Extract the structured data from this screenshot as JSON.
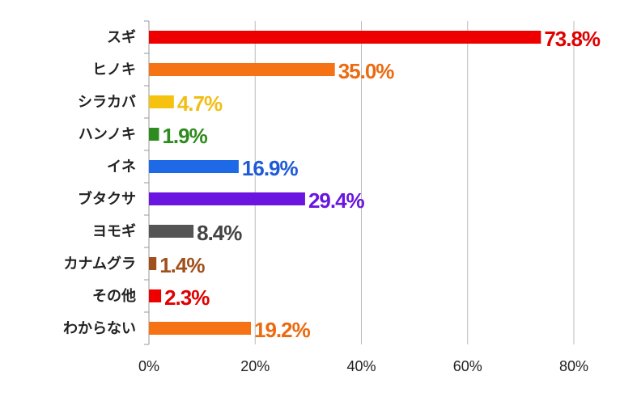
{
  "chart_data": {
    "type": "bar",
    "orientation": "horizontal",
    "categories": [
      "スギ",
      "ヒノキ",
      "シラカバ",
      "ハンノキ",
      "イネ",
      "ブタクサ",
      "ヨモギ",
      "カナムグラ",
      "その他",
      "わからない"
    ],
    "values": [
      73.8,
      35.0,
      4.7,
      1.9,
      16.9,
      29.4,
      8.4,
      1.4,
      2.3,
      19.2
    ],
    "data_labels": [
      "73.8%",
      "35.0%",
      "4.7%",
      "1.9%",
      "16.9%",
      "29.4%",
      "8.4%",
      "1.4%",
      "2.3%",
      "19.2%"
    ],
    "colors": [
      "#ee0000",
      "#f57314",
      "#f5c20f",
      "#2e8b1e",
      "#1e6ae6",
      "#6a16e0",
      "#555555",
      "#a0501c",
      "#ee0000",
      "#f57314"
    ],
    "label_colors": [
      "#e00000",
      "#ec6a10",
      "#f2be14",
      "#2e8b1e",
      "#1e5ad8",
      "#6a16e0",
      "#444444",
      "#a0501c",
      "#e00000",
      "#ec6a10"
    ],
    "xlim": [
      0,
      80
    ],
    "x_ticks": [
      0,
      20,
      40,
      60,
      80
    ],
    "x_tick_labels": [
      "0%",
      "20%",
      "40%",
      "60%",
      "80%"
    ],
    "xlabel": "",
    "ylabel": "",
    "title": "",
    "grid": "vertical",
    "legend": "none"
  }
}
